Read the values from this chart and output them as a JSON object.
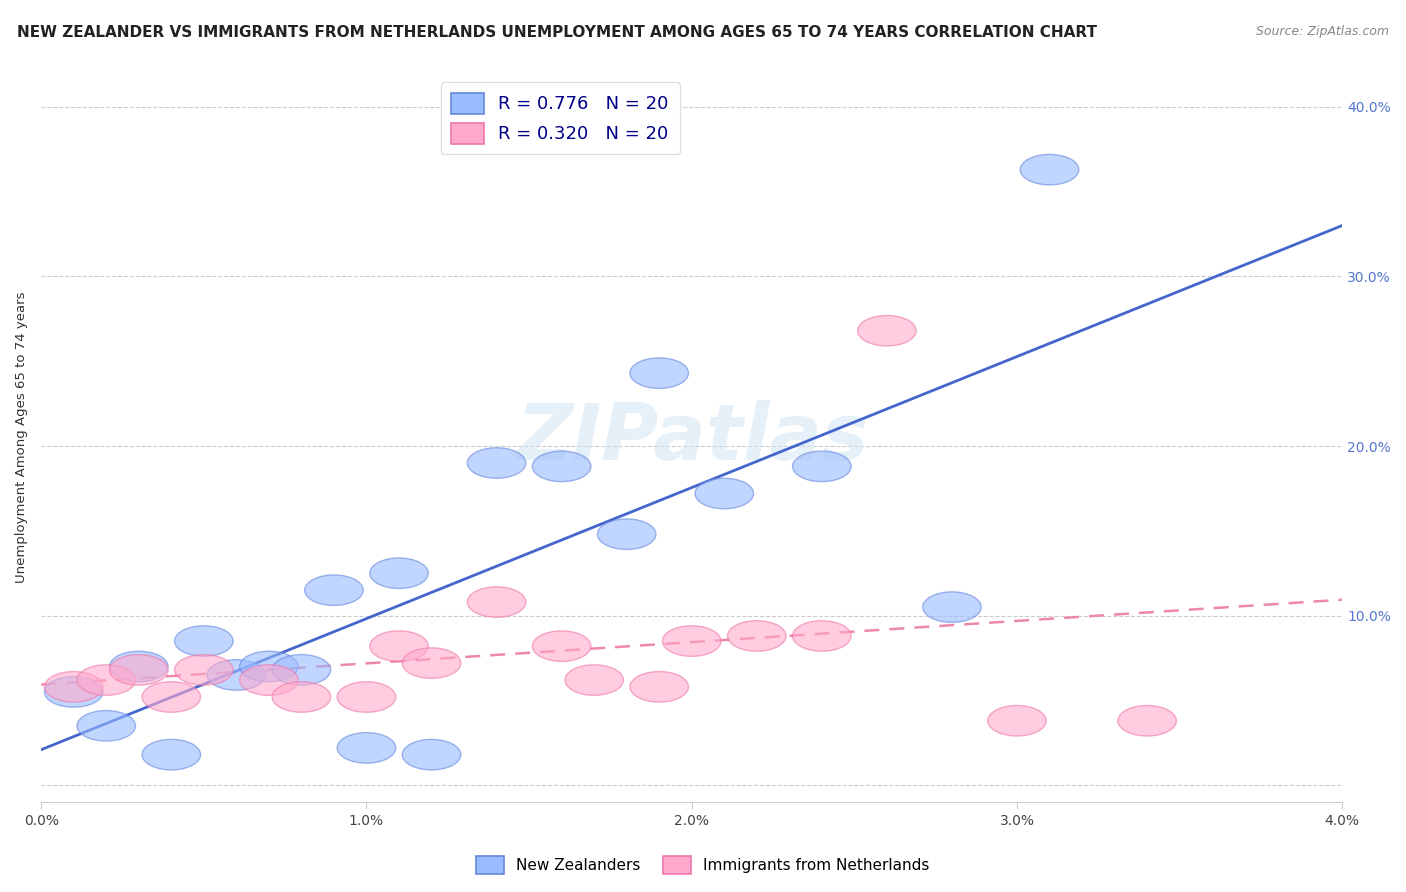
{
  "title": "NEW ZEALANDER VS IMMIGRANTS FROM NETHERLANDS UNEMPLOYMENT AMONG AGES 65 TO 74 YEARS CORRELATION CHART",
  "source": "Source: ZipAtlas.com",
  "ylabel": "Unemployment Among Ages 65 to 74 years",
  "xlim": [
    0.0,
    0.04
  ],
  "ylim": [
    -0.01,
    0.42
  ],
  "x_ticks": [
    0.0,
    0.01,
    0.02,
    0.03,
    0.04
  ],
  "x_tick_labels": [
    "0.0%",
    "1.0%",
    "2.0%",
    "3.0%",
    "4.0%"
  ],
  "y_ticks": [
    0.0,
    0.1,
    0.2,
    0.3,
    0.4
  ],
  "y_tick_labels_left": [
    "",
    "",
    "",
    "",
    ""
  ],
  "y_tick_labels_right": [
    "",
    "10.0%",
    "20.0%",
    "30.0%",
    "40.0%"
  ],
  "legend1_label": "R = 0.776   N = 20",
  "legend2_label": "R = 0.320   N = 20",
  "legend_bottom1": "New Zealanders",
  "legend_bottom2": "Immigrants from Netherlands",
  "blue_scatter": "#99bbff",
  "pink_scatter": "#ffaacc",
  "blue_edge": "#6688dd",
  "pink_edge": "#ee77aa",
  "blue_line_color": "#4466cc",
  "pink_line_color": "#ee88aa",
  "watermark": "ZIPatlas",
  "nz_x": [
    0.001,
    0.002,
    0.003,
    0.004,
    0.005,
    0.006,
    0.007,
    0.008,
    0.009,
    0.01,
    0.011,
    0.012,
    0.014,
    0.016,
    0.018,
    0.019,
    0.021,
    0.024,
    0.028,
    0.031
  ],
  "nz_y": [
    0.055,
    0.035,
    0.07,
    0.018,
    0.085,
    0.065,
    0.07,
    0.068,
    0.115,
    0.022,
    0.125,
    0.018,
    0.19,
    0.188,
    0.148,
    0.243,
    0.172,
    0.188,
    0.105,
    0.363
  ],
  "nl_x": [
    0.001,
    0.002,
    0.003,
    0.004,
    0.005,
    0.007,
    0.008,
    0.01,
    0.011,
    0.012,
    0.014,
    0.016,
    0.017,
    0.019,
    0.02,
    0.022,
    0.024,
    0.026,
    0.03,
    0.034
  ],
  "nl_y": [
    0.058,
    0.062,
    0.068,
    0.052,
    0.068,
    0.062,
    0.052,
    0.052,
    0.082,
    0.072,
    0.108,
    0.082,
    0.062,
    0.058,
    0.085,
    0.088,
    0.088,
    0.268,
    0.038,
    0.038
  ],
  "title_fontsize": 11,
  "axis_label_fontsize": 9.5,
  "tick_fontsize": 10,
  "legend_fontsize": 13,
  "right_tick_color": "#5577cc"
}
